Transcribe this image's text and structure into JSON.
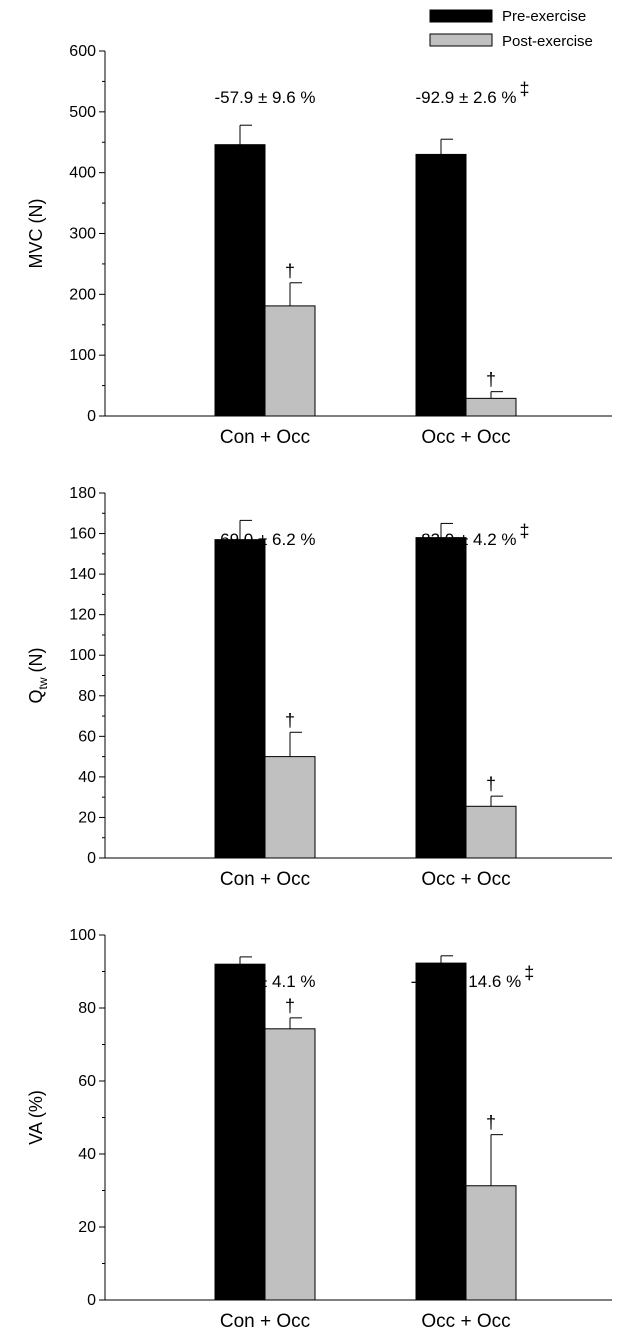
{
  "legend": {
    "items": [
      {
        "label": "Pre-exercise",
        "color": "#000000"
      },
      {
        "label": "Post-exercise",
        "color": "#c0c0c0"
      }
    ],
    "placement": "top-right"
  },
  "chart_data": [
    {
      "type": "bar",
      "categories": [
        "Con + Occ",
        "Occ + Occ"
      ],
      "series": [
        {
          "name": "Pre-exercise",
          "values": [
            446,
            430
          ],
          "errors": [
            32,
            25
          ],
          "color": "#000000"
        },
        {
          "name": "Post-exercise",
          "values": [
            181,
            29
          ],
          "errors": [
            38,
            11
          ],
          "color": "#c0c0c0"
        }
      ],
      "ylabel": "MVC (N)",
      "ylim": [
        0,
        600
      ],
      "yticks": [
        0,
        100,
        200,
        300,
        400,
        500,
        600
      ],
      "annotations": [
        {
          "text": "-57.9 ± 9.6 %",
          "category": 0,
          "sup": ""
        },
        {
          "text": "-92.9 ± 2.6 %",
          "category": 1,
          "sup": "‡"
        }
      ],
      "post_marker": "†"
    },
    {
      "type": "bar",
      "categories": [
        "Con + Occ",
        "Occ + Occ"
      ],
      "series": [
        {
          "name": "Pre-exercise",
          "values": [
            157,
            158
          ],
          "errors": [
            9.5,
            7
          ],
          "color": "#000000"
        },
        {
          "name": "Post-exercise",
          "values": [
            50,
            25.5
          ],
          "errors": [
            12,
            5
          ],
          "color": "#c0c0c0"
        }
      ],
      "ylabel": "Q",
      "ylabel_sub": "tw",
      "ylabel_suffix": " (N)",
      "ylim": [
        0,
        180
      ],
      "yticks": [
        0,
        20,
        40,
        60,
        80,
        100,
        120,
        140,
        160,
        180
      ],
      "annotations": [
        {
          "text": "-69.0 ± 6.2 %",
          "category": 0,
          "sup": ""
        },
        {
          "text": "-83.0 ± 4.2 %",
          "category": 1,
          "sup": "‡"
        }
      ],
      "post_marker": "†"
    },
    {
      "type": "bar",
      "categories": [
        "Con + Occ",
        "Occ + Occ"
      ],
      "series": [
        {
          "name": "Pre-exercise",
          "values": [
            92,
            92.3
          ],
          "errors": [
            2,
            2
          ],
          "color": "#000000"
        },
        {
          "name": "Post-exercise",
          "values": [
            74.3,
            31.3
          ],
          "errors": [
            3,
            14
          ],
          "color": "#c0c0c0"
        }
      ],
      "ylabel": "VA (%)",
      "ylim": [
        0,
        100
      ],
      "yticks": [
        0,
        20,
        40,
        60,
        80,
        100
      ],
      "annotations": [
        {
          "text": "-18.6 ± 4.1 %",
          "category": 0,
          "sup": ""
        },
        {
          "text": "-65.5 ± 14.6 %",
          "category": 1,
          "sup": "‡"
        }
      ],
      "post_marker": "†"
    }
  ]
}
